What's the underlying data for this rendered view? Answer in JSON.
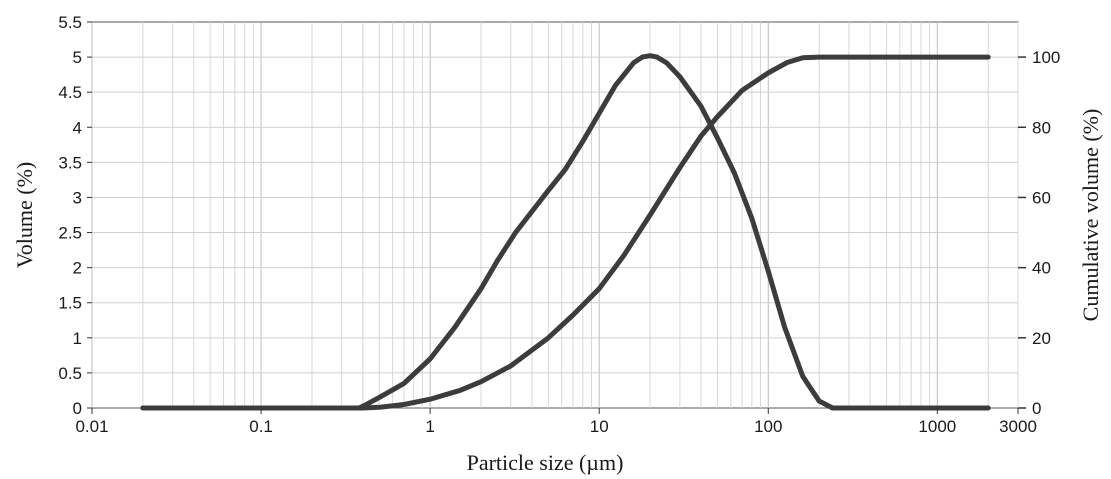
{
  "chart_data": {
    "type": "line",
    "xlabel": "Particle size (µm)",
    "ylabel_left": "Volume (%)",
    "ylabel_right": "Cumulative volume (%)",
    "x_scale": "log",
    "xlim": [
      0.01,
      3000
    ],
    "ylim_left": [
      0,
      5.5
    ],
    "ylim_right": [
      0,
      110
    ],
    "x_tick_labels": [
      "0.01",
      "0.1",
      "1",
      "10",
      "100",
      "1000",
      "3000"
    ],
    "y_left_tick_labels": [
      "0",
      "0.5",
      "1",
      "1.5",
      "2",
      "2.5",
      "3",
      "3.5",
      "4",
      "4.5",
      "5",
      "5.5"
    ],
    "y_right_tick_labels": [
      "0",
      "20",
      "40",
      "60",
      "80",
      "100"
    ],
    "grid": true,
    "series": [
      {
        "axis": "left",
        "x": [
          0.02,
          0.1,
          0.38,
          0.42,
          0.5,
          0.7,
          1.0,
          1.4,
          2.0,
          2.5,
          3.2,
          4.0,
          5.0,
          6.3,
          8.0,
          10,
          12.5,
          16,
          18,
          20,
          22,
          25,
          30,
          40,
          50,
          63,
          80,
          100,
          125,
          160,
          200,
          240,
          500,
          1000,
          2000
        ],
        "values": [
          0,
          0,
          0,
          0.05,
          0.15,
          0.35,
          0.7,
          1.15,
          1.7,
          2.1,
          2.5,
          2.8,
          3.1,
          3.4,
          3.8,
          4.2,
          4.6,
          4.92,
          5.0,
          5.02,
          5.0,
          4.92,
          4.72,
          4.3,
          3.85,
          3.35,
          2.7,
          1.95,
          1.15,
          0.45,
          0.1,
          0,
          0,
          0,
          0
        ]
      },
      {
        "axis": "right",
        "x": [
          0.02,
          0.1,
          0.4,
          0.5,
          0.7,
          1.0,
          1.5,
          2.0,
          3.0,
          4.0,
          5.0,
          7.0,
          10,
          14,
          20,
          30,
          40,
          50,
          70,
          100,
          130,
          160,
          200,
          500,
          1000,
          2000
        ],
        "values": [
          0,
          0,
          0,
          0.2,
          1.0,
          2.5,
          5.0,
          7.5,
          12.0,
          16.5,
          20.0,
          26.5,
          34.0,
          43.5,
          55.0,
          68.5,
          77.5,
          83.0,
          90.5,
          95.5,
          98.5,
          99.8,
          100,
          100,
          100,
          100
        ]
      }
    ]
  }
}
